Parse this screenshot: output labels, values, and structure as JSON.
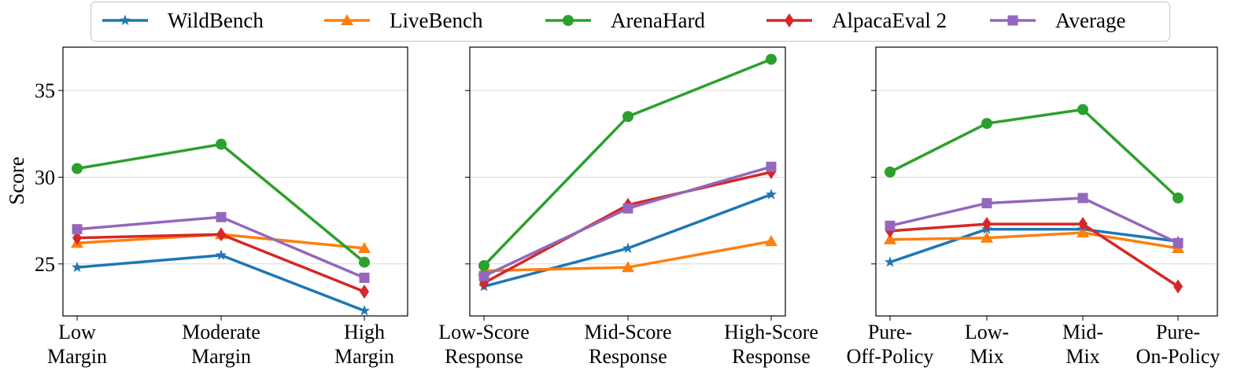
{
  "chart_data": {
    "type": "line",
    "ylabel": "Score",
    "ylim": [
      22,
      37.5
    ],
    "yticks": [
      25,
      30,
      35
    ],
    "grid": "horizontal",
    "legend": {
      "placement": "top-center",
      "entries": [
        {
          "name": "WildBench",
          "color": "#1f77b4",
          "marker": "star"
        },
        {
          "name": "LiveBench",
          "color": "#ff7f0e",
          "marker": "triangle"
        },
        {
          "name": "ArenaHard",
          "color": "#2ca02c",
          "marker": "circle"
        },
        {
          "name": "AlpacaEval 2",
          "color": "#d62728",
          "marker": "diamond"
        },
        {
          "name": "Average",
          "color": "#9467bd",
          "marker": "square"
        }
      ]
    },
    "panels": [
      {
        "categories": [
          [
            "Low",
            "Margin"
          ],
          [
            "Moderate",
            "Margin"
          ],
          [
            "High",
            "Margin"
          ]
        ],
        "series": [
          {
            "name": "WildBench",
            "values": [
              24.8,
              25.5,
              22.3
            ]
          },
          {
            "name": "LiveBench",
            "values": [
              26.2,
              26.7,
              25.9
            ]
          },
          {
            "name": "ArenaHard",
            "values": [
              30.5,
              31.9,
              25.1
            ]
          },
          {
            "name": "AlpacaEval 2",
            "values": [
              26.5,
              26.7,
              23.4
            ]
          },
          {
            "name": "Average",
            "values": [
              27.0,
              27.7,
              24.2
            ]
          }
        ]
      },
      {
        "categories": [
          [
            "Low-Score",
            "Response"
          ],
          [
            "Mid-Score",
            "Response"
          ],
          [
            "High-Score",
            "Response"
          ]
        ],
        "series": [
          {
            "name": "WildBench",
            "values": [
              23.7,
              25.9,
              29.0
            ]
          },
          {
            "name": "LiveBench",
            "values": [
              24.6,
              24.8,
              26.3
            ]
          },
          {
            "name": "ArenaHard",
            "values": [
              24.9,
              33.5,
              36.8
            ]
          },
          {
            "name": "AlpacaEval 2",
            "values": [
              23.9,
              28.4,
              30.3
            ]
          },
          {
            "name": "Average",
            "values": [
              24.3,
              28.2,
              30.6
            ]
          }
        ]
      },
      {
        "categories": [
          [
            "Pure-",
            "Off-Policy"
          ],
          [
            "Low-",
            "Mix"
          ],
          [
            "Mid-",
            "Mix"
          ],
          [
            "Pure-",
            "On-Policy"
          ]
        ],
        "series": [
          {
            "name": "WildBench",
            "values": [
              25.1,
              27.0,
              27.0,
              26.3
            ]
          },
          {
            "name": "LiveBench",
            "values": [
              26.4,
              26.5,
              26.8,
              25.9
            ]
          },
          {
            "name": "ArenaHard",
            "values": [
              30.3,
              33.1,
              33.9,
              28.8
            ]
          },
          {
            "name": "AlpacaEval 2",
            "values": [
              26.9,
              27.3,
              27.3,
              23.7
            ]
          },
          {
            "name": "Average",
            "values": [
              27.2,
              28.5,
              28.8,
              26.2
            ]
          }
        ]
      }
    ]
  }
}
